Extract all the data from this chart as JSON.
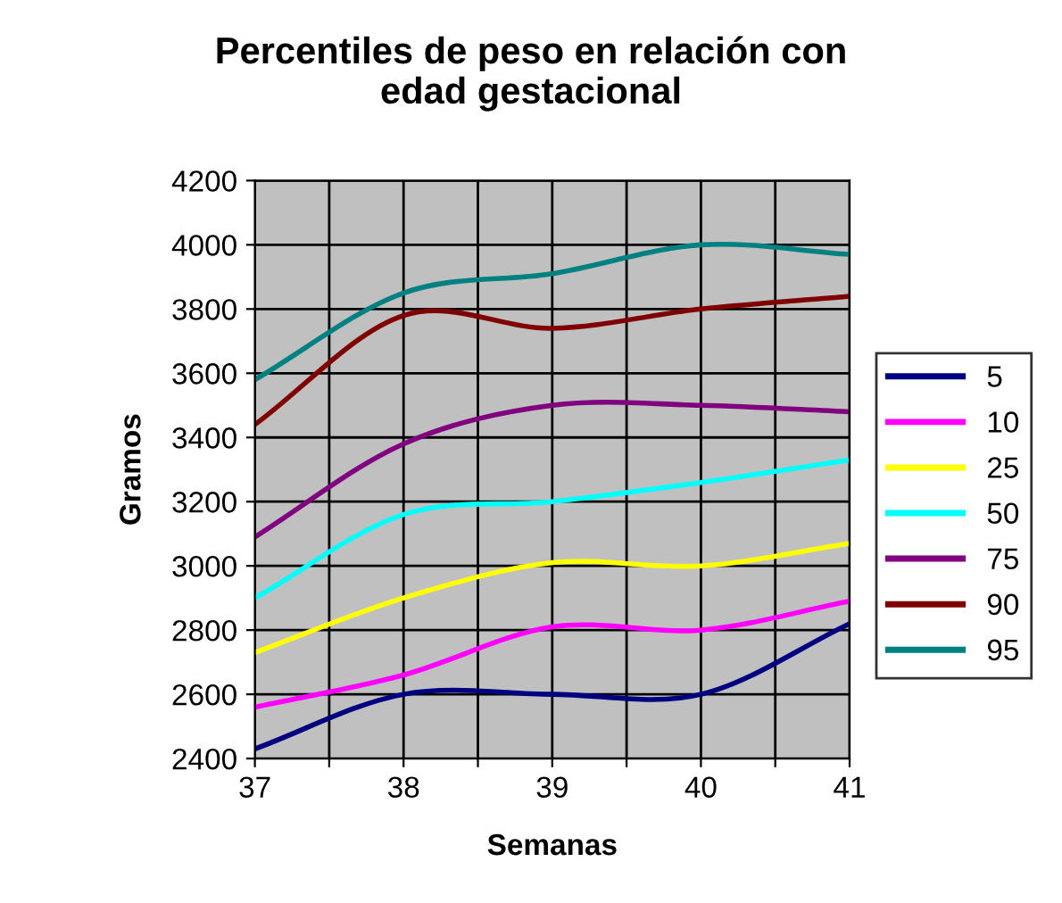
{
  "chart_data": {
    "type": "line",
    "title": "Percentiles de peso en relación con\nedad gestacional",
    "xlabel": "Semanas",
    "ylabel": "Gramos",
    "x": [
      37,
      38,
      39,
      40,
      41
    ],
    "series": [
      {
        "name": "5",
        "color": "#000080",
        "values": [
          2430,
          2600,
          2600,
          2600,
          2820
        ]
      },
      {
        "name": "10",
        "color": "#ff00ff",
        "values": [
          2560,
          2660,
          2810,
          2800,
          2890
        ]
      },
      {
        "name": "25",
        "color": "#ffff00",
        "values": [
          2730,
          2900,
          3010,
          3000,
          3070
        ]
      },
      {
        "name": "50",
        "color": "#00ffff",
        "values": [
          2900,
          3160,
          3200,
          3260,
          3330
        ]
      },
      {
        "name": "75",
        "color": "#800080",
        "values": [
          3090,
          3380,
          3500,
          3500,
          3480
        ]
      },
      {
        "name": "90",
        "color": "#800000",
        "values": [
          3440,
          3780,
          3740,
          3800,
          3840
        ]
      },
      {
        "name": "95",
        "color": "#008080",
        "values": [
          3580,
          3850,
          3910,
          4000,
          3970
        ]
      }
    ],
    "xlim": [
      37,
      41
    ],
    "ylim": [
      2400,
      4200
    ],
    "xticks": [
      37,
      {
        "value": 37.5,
        "label": null
      },
      38,
      {
        "value": 38.5,
        "label": null
      },
      39,
      {
        "value": 39.5,
        "label": null
      },
      40,
      {
        "value": 40.5,
        "label": null
      },
      41
    ],
    "yticks": [
      2400,
      2600,
      2800,
      3000,
      3200,
      3400,
      3600,
      3800,
      4000,
      4200
    ],
    "grid": true,
    "legend": "right",
    "marker": "none",
    "line_style": "solid"
  }
}
